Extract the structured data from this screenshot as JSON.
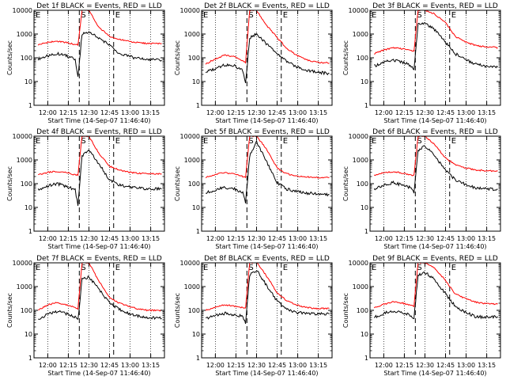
{
  "figure": {
    "x_ticks": [
      "12:00",
      "12:15",
      "12:30",
      "12:45",
      "13:00",
      "13:15"
    ],
    "y_ticks": [
      "1",
      "10",
      "100",
      "1000",
      "10000"
    ],
    "xlabel": "Start Time (14-Sep-07 11:46:40)",
    "ylabel": "Counts/sec",
    "marker_labels": [
      "E",
      "S",
      "E"
    ],
    "colors": {
      "events": "#000000",
      "lld": "#ff0000",
      "frame": "#000000"
    }
  },
  "chart_data": [
    {
      "type": "line",
      "title": "Det 1f BLACK = Events, RED = LLD",
      "xlabel": "Start Time (14-Sep-07 11:46:40)",
      "ylabel": "Counts/sec",
      "ylim": [
        1,
        10000
      ],
      "yscale": "log",
      "x": [
        "11:53",
        "12:00",
        "12:07",
        "12:14",
        "12:20",
        "12:22",
        "12:25",
        "12:30",
        "12:37",
        "12:45",
        "12:52",
        "13:00",
        "13:07",
        "13:14",
        "13:23"
      ],
      "series": [
        {
          "name": "BLACK = Events",
          "values": [
            90,
            120,
            150,
            120,
            85,
            15,
            1000,
            1200,
            700,
            350,
            150,
            110,
            90,
            85,
            80
          ]
        },
        {
          "name": "RED = LLD",
          "values": [
            350,
            450,
            500,
            430,
            360,
            350,
            10000,
            10000,
            2000,
            800,
            600,
            480,
            420,
            400,
            400
          ]
        }
      ]
    },
    {
      "type": "line",
      "title": "Det 2f BLACK = Events, RED = LLD",
      "xlabel": "Start Time (14-Sep-07 11:46:40)",
      "ylabel": "Counts/sec",
      "ylim": [
        1,
        10000
      ],
      "yscale": "log",
      "x": [
        "11:53",
        "12:00",
        "12:07",
        "12:14",
        "12:20",
        "12:22",
        "12:25",
        "12:30",
        "12:37",
        "12:45",
        "12:52",
        "13:00",
        "13:07",
        "13:14",
        "13:23"
      ],
      "series": [
        {
          "name": "BLACK = Events",
          "values": [
            25,
            35,
            50,
            45,
            30,
            8,
            700,
            1000,
            400,
            150,
            70,
            40,
            30,
            25,
            22
          ]
        },
        {
          "name": "RED = LLD",
          "values": [
            55,
            90,
            130,
            110,
            75,
            60,
            10000,
            10000,
            2500,
            700,
            250,
            120,
            80,
            65,
            60
          ]
        }
      ]
    },
    {
      "type": "line",
      "title": "Det 3f BLACK = Events, RED = LLD",
      "xlabel": "Start Time (14-Sep-07 11:46:40)",
      "ylabel": "Counts/sec",
      "ylim": [
        1,
        10000
      ],
      "yscale": "log",
      "x": [
        "11:53",
        "12:00",
        "12:07",
        "12:14",
        "12:20",
        "12:22",
        "12:25",
        "12:30",
        "12:37",
        "12:45",
        "12:52",
        "13:00",
        "13:07",
        "13:14",
        "13:23"
      ],
      "series": [
        {
          "name": "BLACK = Events",
          "values": [
            45,
            65,
            80,
            65,
            45,
            30,
            2500,
            3000,
            1500,
            450,
            150,
            80,
            55,
            45,
            40
          ]
        },
        {
          "name": "RED = LLD",
          "values": [
            150,
            210,
            270,
            240,
            200,
            180,
            10000,
            10000,
            7000,
            3000,
            800,
            450,
            330,
            290,
            270
          ]
        }
      ]
    },
    {
      "type": "line",
      "title": "Det 4f BLACK = Events, RED = LLD",
      "xlabel": "Start Time (14-Sep-07 11:46:40)",
      "ylabel": "Counts/sec",
      "ylim": [
        1,
        10000
      ],
      "yscale": "log",
      "x": [
        "11:53",
        "12:00",
        "12:07",
        "12:14",
        "12:20",
        "12:22",
        "12:25",
        "12:30",
        "12:37",
        "12:45",
        "12:52",
        "13:00",
        "13:07",
        "13:14",
        "13:23"
      ],
      "series": [
        {
          "name": "BLACK = Events",
          "values": [
            55,
            80,
            100,
            75,
            55,
            12,
            1500,
            2500,
            700,
            150,
            90,
            70,
            65,
            60,
            60
          ]
        },
        {
          "name": "RED = LLD",
          "values": [
            230,
            300,
            330,
            290,
            240,
            230,
            10000,
            10000,
            2000,
            550,
            380,
            300,
            270,
            260,
            260
          ]
        }
      ]
    },
    {
      "type": "line",
      "title": "Det 5f BLACK = Events, RED = LLD",
      "xlabel": "Start Time (14-Sep-07 11:46:40)",
      "ylabel": "Counts/sec",
      "ylim": [
        1,
        10000
      ],
      "yscale": "log",
      "x": [
        "11:53",
        "12:00",
        "12:07",
        "12:14",
        "12:20",
        "12:22",
        "12:25",
        "12:30",
        "12:37",
        "12:45",
        "12:52",
        "13:00",
        "13:07",
        "13:14",
        "13:23"
      ],
      "series": [
        {
          "name": "BLACK = Events",
          "values": [
            40,
            55,
            70,
            60,
            40,
            15,
            1500,
            6000,
            900,
            110,
            60,
            45,
            40,
            38,
            35
          ]
        },
        {
          "name": "RED = LLD",
          "values": [
            180,
            250,
            290,
            250,
            200,
            190,
            10000,
            10000,
            3000,
            450,
            260,
            210,
            190,
            180,
            180
          ]
        }
      ]
    },
    {
      "type": "line",
      "title": "Det 6f BLACK = Events, RED = LLD",
      "xlabel": "Start Time (14-Sep-07 11:46:40)",
      "ylabel": "Counts/sec",
      "ylim": [
        1,
        10000
      ],
      "yscale": "log",
      "x": [
        "11:53",
        "12:00",
        "12:07",
        "12:14",
        "12:20",
        "12:22",
        "12:25",
        "12:30",
        "12:37",
        "12:45",
        "12:52",
        "13:00",
        "13:07",
        "13:14",
        "13:23"
      ],
      "series": [
        {
          "name": "BLACK = Events",
          "values": [
            60,
            90,
            110,
            85,
            65,
            40,
            2500,
            4000,
            1500,
            350,
            150,
            90,
            65,
            60,
            58
          ]
        },
        {
          "name": "RED = LLD",
          "values": [
            220,
            290,
            320,
            280,
            230,
            220,
            10000,
            10000,
            4500,
            1200,
            650,
            450,
            380,
            350,
            340
          ]
        }
      ]
    },
    {
      "type": "line",
      "title": "Det 7f BLACK = Events, RED = LLD",
      "xlabel": "Start Time (14-Sep-07 11:46:40)",
      "ylabel": "Counts/sec",
      "ylim": [
        1,
        10000
      ],
      "yscale": "log",
      "x": [
        "11:53",
        "12:00",
        "12:07",
        "12:14",
        "12:20",
        "12:22",
        "12:25",
        "12:30",
        "12:37",
        "12:45",
        "12:52",
        "13:00",
        "13:07",
        "13:14",
        "13:23"
      ],
      "series": [
        {
          "name": "BLACK = Events",
          "values": [
            40,
            70,
            90,
            70,
            50,
            40,
            2000,
            2500,
            800,
            200,
            110,
            70,
            55,
            50,
            45
          ]
        },
        {
          "name": "RED = LLD",
          "values": [
            100,
            170,
            210,
            170,
            130,
            120,
            10000,
            10000,
            1800,
            350,
            200,
            140,
            110,
            100,
            100
          ]
        }
      ]
    },
    {
      "type": "line",
      "title": "Det 8f BLACK = Events, RED = LLD",
      "xlabel": "Start Time (14-Sep-07 11:46:40)",
      "ylabel": "Counts/sec",
      "ylim": [
        1,
        10000
      ],
      "yscale": "log",
      "x": [
        "11:53",
        "12:00",
        "12:07",
        "12:14",
        "12:20",
        "12:22",
        "12:25",
        "12:30",
        "12:37",
        "12:45",
        "12:52",
        "13:00",
        "13:07",
        "13:14",
        "13:23"
      ],
      "series": [
        {
          "name": "BLACK = Events",
          "values": [
            45,
            60,
            75,
            65,
            55,
            30,
            3000,
            5000,
            1200,
            250,
            110,
            80,
            75,
            70,
            70
          ]
        },
        {
          "name": "RED = LLD",
          "values": [
            100,
            140,
            170,
            150,
            130,
            120,
            10000,
            10000,
            3000,
            550,
            250,
            160,
            130,
            120,
            120
          ]
        }
      ]
    },
    {
      "type": "line",
      "title": "Det 9f BLACK = Events, RED = LLD",
      "xlabel": "Start Time (14-Sep-07 11:46:40)",
      "ylabel": "Counts/sec",
      "ylim": [
        1,
        10000
      ],
      "yscale": "log",
      "x": [
        "11:53",
        "12:00",
        "12:07",
        "12:14",
        "12:20",
        "12:22",
        "12:25",
        "12:30",
        "12:37",
        "12:45",
        "12:52",
        "13:00",
        "13:07",
        "13:14",
        "13:23"
      ],
      "series": [
        {
          "name": "BLACK = Events",
          "values": [
            50,
            75,
            95,
            80,
            60,
            45,
            3000,
            4000,
            2000,
            500,
            150,
            80,
            55,
            50,
            55
          ]
        },
        {
          "name": "RED = LLD",
          "values": [
            130,
            180,
            230,
            200,
            160,
            150,
            10000,
            10000,
            6000,
            1800,
            500,
            300,
            220,
            190,
            180
          ]
        }
      ]
    }
  ]
}
